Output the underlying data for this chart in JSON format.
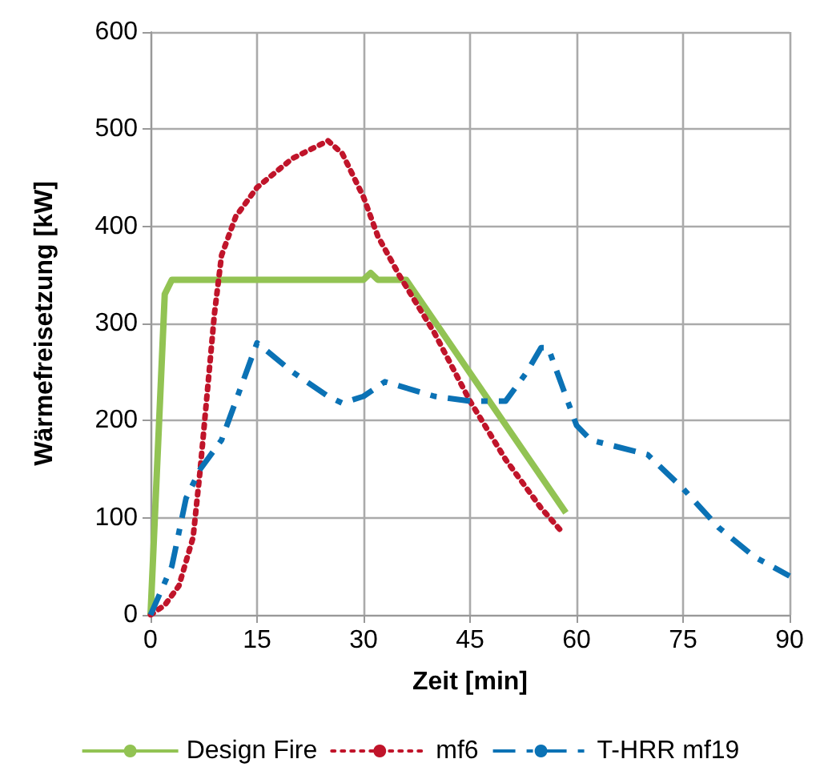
{
  "chart_data": {
    "type": "line",
    "xlabel": "Zeit [min]",
    "ylabel": "Wärmefreisetzung [kW]",
    "xlim": [
      0,
      90
    ],
    "xticks": [
      0,
      15,
      30,
      45,
      60,
      75,
      90
    ],
    "ylim": [
      0,
      600
    ],
    "yticks": [
      0,
      100,
      200,
      300,
      400,
      500,
      600
    ],
    "grid": true,
    "legend": "bottom",
    "marker": "none",
    "series": [
      {
        "name": "Design Fire",
        "color": "#92c353",
        "line_style": "solid",
        "x": [
          0,
          2,
          3,
          30,
          31,
          32,
          36,
          58.5
        ],
        "values": [
          0,
          330,
          345,
          345,
          352,
          345,
          345,
          105
        ]
      },
      {
        "name": "mf6",
        "color": "#c0142a",
        "line_style": "dotted",
        "x": [
          0,
          2,
          4,
          6,
          7,
          8,
          9,
          10,
          12,
          15,
          20,
          25,
          27,
          30,
          32,
          35,
          40,
          45,
          50,
          55,
          58
        ],
        "values": [
          0,
          10,
          30,
          80,
          150,
          230,
          310,
          370,
          410,
          440,
          470,
          488,
          475,
          430,
          390,
          350,
          290,
          220,
          160,
          110,
          85
        ]
      },
      {
        "name": "T-HRR mf19",
        "color": "#0b72b5",
        "line_style": "dashed",
        "x": [
          0,
          3,
          5,
          7,
          10,
          12,
          15,
          20,
          25,
          27,
          30,
          33,
          40,
          45,
          50,
          53,
          55,
          56,
          58,
          60,
          62,
          70,
          75,
          80,
          85,
          90
        ],
        "values": [
          0,
          50,
          120,
          150,
          180,
          220,
          280,
          250,
          225,
          218,
          225,
          240,
          225,
          220,
          220,
          250,
          275,
          275,
          235,
          195,
          180,
          165,
          130,
          90,
          60,
          40
        ]
      }
    ]
  }
}
